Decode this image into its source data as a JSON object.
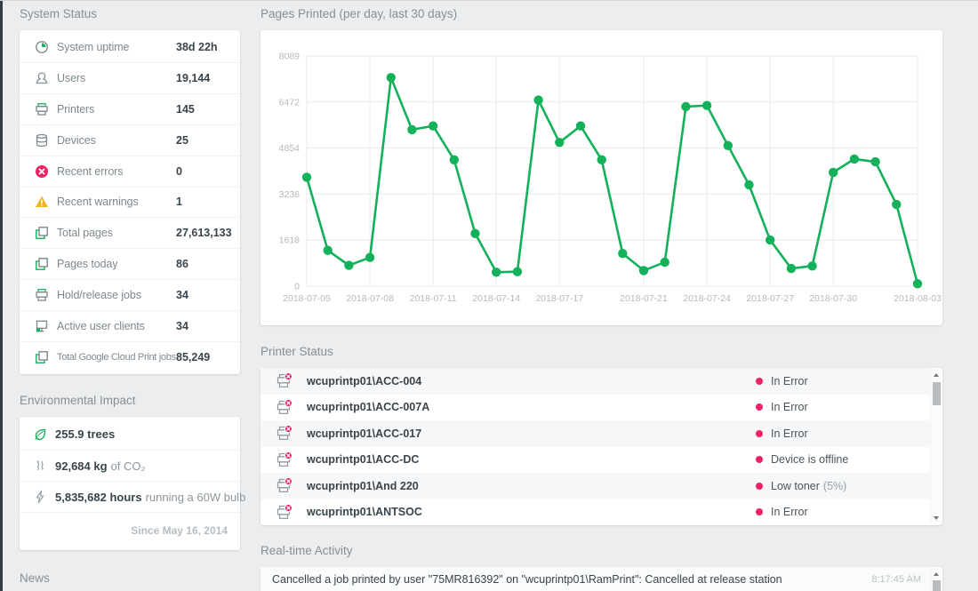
{
  "theme": {
    "accent_green": "#12b15a",
    "accent_pink": "#ed2164",
    "accent_amber": "#f2b22e",
    "background": "#ebedee",
    "card": "#ffffff",
    "text_dark": "#39444b",
    "text_gray": "#7d898f"
  },
  "system_status": {
    "title": "System Status",
    "rows": [
      {
        "icon": "clock-icon",
        "label": "System uptime",
        "value": "38d 22h"
      },
      {
        "icon": "user-icon",
        "label": "Users",
        "value": "19,144"
      },
      {
        "icon": "printer-icon",
        "label": "Printers",
        "value": "145"
      },
      {
        "icon": "devices-icon",
        "label": "Devices",
        "value": "25"
      },
      {
        "icon": "error-icon",
        "label": "Recent errors",
        "value": "0"
      },
      {
        "icon": "warning-icon",
        "label": "Recent warnings",
        "value": "1"
      },
      {
        "icon": "pages-icon",
        "label": "Total pages",
        "value": "27,613,133"
      },
      {
        "icon": "pages-icon",
        "label": "Pages today",
        "value": "86"
      },
      {
        "icon": "printer-icon",
        "label": "Hold/release jobs",
        "value": "34"
      },
      {
        "icon": "client-icon",
        "label": "Active user clients",
        "value": "34"
      },
      {
        "icon": "pages-icon",
        "label": "Total Google Cloud Print jobs",
        "value": "85,249"
      }
    ]
  },
  "environmental_impact": {
    "title": "Environmental Impact",
    "rows": [
      {
        "icon": "leaf-icon",
        "bold": "255.9 trees",
        "rest": ""
      },
      {
        "icon": "co2-icon",
        "bold": "92,684 kg",
        "rest": "of CO₂"
      },
      {
        "icon": "energy-icon",
        "bold": "5,835,682 hours",
        "rest": "running a 60W bulb"
      }
    ],
    "footer": "Since May 16, 2014"
  },
  "news": {
    "title": "News"
  },
  "pages_chart": {
    "title": "Pages Printed (per day, last 30 days)"
  },
  "chart_data": {
    "type": "line",
    "title": "Pages Printed (per day, last 30 days)",
    "x": [
      "2018-07-05",
      "2018-07-06",
      "2018-07-07",
      "2018-07-08",
      "2018-07-09",
      "2018-07-10",
      "2018-07-11",
      "2018-07-12",
      "2018-07-13",
      "2018-07-14",
      "2018-07-15",
      "2018-07-16",
      "2018-07-17",
      "2018-07-18",
      "2018-07-19",
      "2018-07-20",
      "2018-07-21",
      "2018-07-22",
      "2018-07-23",
      "2018-07-24",
      "2018-07-25",
      "2018-07-26",
      "2018-07-27",
      "2018-07-28",
      "2018-07-29",
      "2018-07-30",
      "2018-07-31",
      "2018-08-01",
      "2018-08-02",
      "2018-08-03"
    ],
    "values": [
      3830,
      1260,
      730,
      1010,
      7330,
      5500,
      5630,
      4440,
      1850,
      490,
      510,
      6540,
      5050,
      5630,
      4440,
      1150,
      550,
      840,
      6310,
      6350,
      4940,
      3560,
      1620,
      620,
      710,
      4000,
      4470,
      4370,
      2870,
      85
    ],
    "y_ticks": [
      0,
      1618,
      3236,
      4854,
      6472,
      8089
    ],
    "x_tick_labels": [
      "2018-07-05",
      "2018-07-08",
      "2018-07-11",
      "2018-07-14",
      "2018-07-17",
      "2018-07-21",
      "2018-07-24",
      "2018-07-27",
      "2018-07-30",
      "2018-08-03"
    ],
    "x_tick_indices": [
      0,
      3,
      6,
      9,
      12,
      16,
      19,
      22,
      25,
      29
    ],
    "ylim": [
      0,
      8089
    ],
    "xlabel": "",
    "ylabel": "",
    "grid": true,
    "legend": "none",
    "line_color": "#12b15a"
  },
  "printer_status": {
    "title": "Printer Status",
    "rows": [
      {
        "icon": "printer-error-icon",
        "name": "wcuprintp01\\ACC-004",
        "status": "In Error",
        "detail": ""
      },
      {
        "icon": "printer-error-icon",
        "name": "wcuprintp01\\ACC-007A",
        "status": "In Error",
        "detail": ""
      },
      {
        "icon": "printer-error-icon",
        "name": "wcuprintp01\\ACC-017",
        "status": "In Error",
        "detail": ""
      },
      {
        "icon": "printer-error-icon",
        "name": "wcuprintp01\\ACC-DC",
        "status": "Device is offline",
        "detail": ""
      },
      {
        "icon": "printer-error-icon",
        "name": "wcuprintp01\\And 220",
        "status": "Low toner",
        "detail": "(5%)"
      },
      {
        "icon": "printer-error-icon",
        "name": "wcuprintp01\\ANTSOC",
        "status": "In Error",
        "detail": ""
      }
    ]
  },
  "realtime_activity": {
    "title": "Real-time Activity",
    "rows": [
      {
        "message": "Cancelled a job printed by user \"75MR816392\" on \"wcuprintp01\\RamPrint\": Cancelled at release station",
        "time": "8:17:45 AM"
      }
    ]
  }
}
